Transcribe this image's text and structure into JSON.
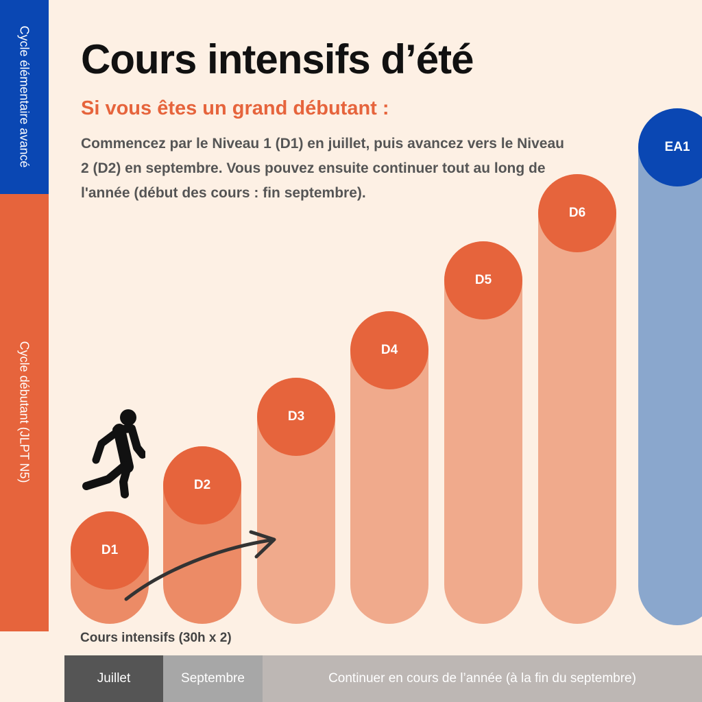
{
  "sidebar": {
    "top_label": "Cycle élémentaire avancé",
    "bottom_label": "Cycle débutant (JLPT N5)"
  },
  "header": {
    "title": "Cours intensifs d’été",
    "subtitle": "Si vous êtes un grand débutant :",
    "intro": "Commencez par le Niveau 1 (D1) en juillet, puis avancez vers le Niveau 2 (D2) en septembre. Vous pouvez ensuite continuer tout au long de l'année (début des cours : fin septembre)."
  },
  "levels": [
    {
      "label": "D1",
      "step": 1
    },
    {
      "label": "D2",
      "step": 2
    },
    {
      "label": "D3",
      "step": 3
    },
    {
      "label": "D4",
      "step": 4
    },
    {
      "label": "D5",
      "step": 5
    },
    {
      "label": "D6",
      "step": 6
    },
    {
      "label": "EA1",
      "step": 7
    }
  ],
  "colors": {
    "background": "#fdf0e4",
    "orange": "#e6643c",
    "blue": "#0a47b3",
    "pillar_d1": "#ec8b66",
    "pillar_d2": "#ec8b66",
    "pillar_light": "#f0aa8c",
    "pillar_blue": "#8aa7cd"
  },
  "icons": {
    "walker": "person-walking-icon",
    "arrow": "curved-arrow-icon"
  },
  "caption": "Cours intensifs (30h x 2)",
  "timeline": {
    "july": "Juillet",
    "september": "Septembre",
    "rest": "Continuer en cours de l’année (à la fin du septembre)"
  }
}
